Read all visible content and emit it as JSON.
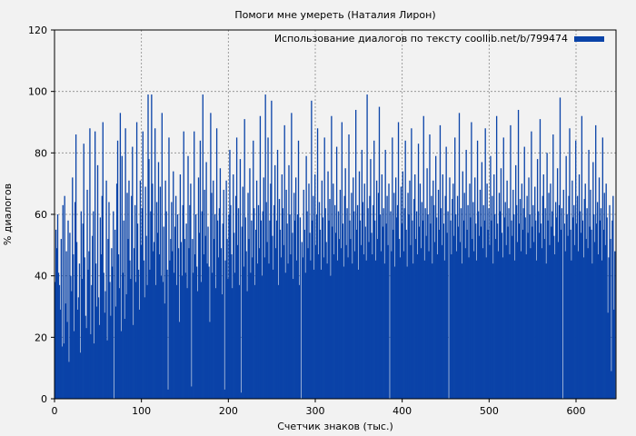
{
  "chart_data": {
    "type": "bar",
    "title": "Помоги мне умереть (Наталия Лирон)",
    "xlabel": "Счетчик знаков (тыс.)",
    "ylabel": "% диалогов",
    "xlim": [
      0,
      646
    ],
    "ylim": [
      0,
      120
    ],
    "x_ticks": [
      "0",
      "100",
      "200",
      "300",
      "400",
      "500",
      "600"
    ],
    "y_ticks": [
      "0",
      "20",
      "40",
      "60",
      "80",
      "100",
      "120"
    ],
    "grid": true,
    "legend_position": "top-right",
    "series": [
      {
        "name": "Использование диалогов по тексту coollib.net/b/799474",
        "color": "#0a43a8",
        "x_step": 1,
        "values": [
          38,
          55,
          49,
          60,
          41,
          37,
          29,
          52,
          17,
          63,
          18,
          66,
          31,
          48,
          25,
          58,
          12,
          54,
          40,
          35,
          72,
          47,
          22,
          64,
          86,
          51,
          29,
          33,
          44,
          15,
          61,
          39,
          57,
          83,
          46,
          27,
          23,
          68,
          42,
          48,
          88,
          21,
          37,
          53,
          61,
          18,
          87,
          44,
          30,
          76,
          33,
          24,
          59,
          47,
          66,
          90,
          41,
          28,
          35,
          71,
          19,
          52,
          64,
          38,
          27,
          49,
          43,
          61,
          0,
          55,
          30,
          70,
          84,
          47,
          36,
          93,
          22,
          79,
          41,
          58,
          26,
          88,
          34,
          67,
          52,
          71,
          45,
          39,
          66,
          82,
          24,
          49,
          63,
          38,
          90,
          57,
          42,
          29,
          71,
          50,
          62,
          87,
          45,
          33,
          69,
          53,
          37,
          99,
          78,
          42,
          61,
          99,
          70,
          48,
          51,
          88,
          37,
          64,
          54,
          77,
          47,
          69,
          40,
          93,
          38,
          56,
          31,
          71,
          61,
          42,
          3,
          85,
          45,
          52,
          64,
          48,
          74,
          41,
          56,
          66,
          37,
          60,
          49,
          25,
          73,
          51,
          40,
          63,
          87,
          52,
          41,
          57,
          36,
          79,
          49,
          63,
          70,
          4,
          52,
          41,
          87,
          47,
          60,
          43,
          35,
          72,
          54,
          84,
          38,
          61,
          99,
          47,
          68,
          53,
          77,
          44,
          56,
          43,
          25,
          93,
          67,
          41,
          71,
          52,
          60,
          36,
          88,
          58,
          46,
          62,
          75,
          49,
          34,
          57,
          68,
          3,
          45,
          71,
          52,
          39,
          60,
          81,
          63,
          47,
          36,
          73,
          54,
          41,
          66,
          85,
          50,
          62,
          37,
          78,
          2,
          56,
          69,
          43,
          91,
          59,
          48,
          35,
          67,
          52,
          75,
          41,
          58,
          46,
          84,
          62,
          37,
          55,
          71,
          44,
          63,
          49,
          92,
          58,
          40,
          61,
          72,
          46,
          99,
          64,
          51,
          85,
          44,
          58,
          70,
          97,
          53,
          42,
          63,
          76,
          49,
          58,
          81,
          37,
          65,
          55,
          46,
          73,
          62,
          50,
          89,
          41,
          68,
          57,
          44,
          76,
          60,
          47,
          93,
          54,
          39,
          67,
          58,
          72,
          45,
          60,
          84,
          37,
          59,
          0,
          51,
          46,
          68,
          55,
          41,
          79,
          61,
          49,
          70,
          54,
          45,
          97,
          58,
          66,
          42,
          73,
          50,
          60,
          88,
          47,
          64,
          55,
          42,
          71,
          59,
          46,
          85,
          62,
          51,
          44,
          74,
          58,
          65,
          40,
          92,
          56,
          70,
          47,
          63,
          54,
          82,
          45,
          61,
          52,
          68,
          49,
          90,
          57,
          43,
          66,
          75,
          50,
          62,
          46,
          86,
          58,
          52,
          67,
          44,
          72,
          61,
          48,
          94,
          55,
          63,
          42,
          74,
          58,
          50,
          81,
          64,
          47,
          70,
          56,
          45,
          99,
          62,
          51,
          66,
          78,
          54,
          47,
          63,
          84,
          58,
          45,
          71,
          52,
          67,
          95,
          60,
          48,
          73,
          56,
          62,
          44,
          81,
          57,
          66,
          50,
          70,
          0,
          61,
          48,
          85,
          55,
          67,
          43,
          72,
          59,
          63,
          90,
          52,
          46,
          69,
          57,
          74,
          48,
          62,
          84,
          55,
          43,
          67,
          60,
          71,
          50,
          88,
          58,
          44,
          65,
          73,
          52,
          61,
          47,
          83,
          56,
          70,
          49,
          64,
          58,
          92,
          45,
          62,
          53,
          75,
          60,
          48,
          86,
          57,
          66,
          44,
          71,
          63,
          51,
          79,
          59,
          47,
          68,
          55,
          89,
          62,
          50,
          73,
          57,
          45,
          66,
          82,
          54,
          61,
          0,
          72,
          58,
          47,
          65,
          70,
          53,
          85,
          60,
          48,
          66,
          56,
          93,
          51,
          62,
          44,
          74,
          58,
          67,
          49,
          81,
          55,
          63,
          46,
          70,
          59,
          90,
          52,
          64,
          48,
          72,
          57,
          45,
          84,
          61,
          53,
          68,
          56,
          77,
          49,
          63,
          58,
          88,
          46,
          70,
          55,
          62,
          50,
          79,
          58,
          66,
          44,
          73,
          60,
          52,
          92,
          57,
          48,
          67,
          61,
          75,
          54,
          46,
          85,
          59,
          64,
          50,
          71,
          56,
          62,
          47,
          89,
          58,
          53,
          68,
          60,
          45,
          76,
          63,
          51,
          94,
          57,
          65,
          48,
          70,
          55,
          62,
          82,
          59,
          47,
          66,
          54,
          72,
          60,
          49,
          87,
          56,
          63,
          51,
          69,
          58,
          45,
          78,
          61,
          54,
          91,
          57,
          49,
          66,
          73,
          52,
          62,
          44,
          80,
          58,
          67,
          50,
          70,
          56,
          61,
          86,
          53,
          47,
          64,
          59,
          75,
          51,
          63,
          98,
          55,
          62,
          0,
          68,
          57,
          48,
          79,
          60,
          53,
          66,
          88,
          55,
          45,
          71,
          59,
          63,
          50,
          84,
          57,
          66,
          48,
          73,
          61,
          54,
          92,
          58,
          46,
          65,
          70,
          52,
          62,
          49,
          81,
          56,
          68,
          55,
          44,
          77,
          60,
          51,
          89,
          57,
          64,
          47,
          72,
          58,
          62,
          45,
          85,
          55,
          67,
          50,
          70,
          59,
          28,
          46,
          63,
          52,
          9,
          58,
          66,
          29,
          48
        ]
      }
    ]
  }
}
